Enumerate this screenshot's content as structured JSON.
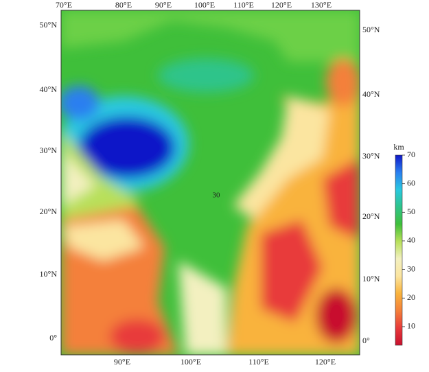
{
  "map": {
    "top_labels": [
      "70°E",
      "80°E",
      "90°E",
      "100°E",
      "110°E",
      "120°E",
      "130°E"
    ],
    "bottom_labels": [
      "90°E",
      "100°E",
      "110°E",
      "120°E"
    ],
    "left_labels": [
      "50°N",
      "40°N",
      "30°N",
      "20°N",
      "10°N",
      "0°"
    ],
    "right_labels": [
      "50°N",
      "40°N",
      "30°N",
      "20°N",
      "10°N",
      "0°"
    ],
    "contour_label": "30",
    "colorbar": {
      "title": "km",
      "clim": [
        3.5,
        70
      ],
      "ticks": [
        10,
        20,
        30,
        40,
        50,
        60,
        70
      ],
      "colormap": [
        "#c8102e",
        "#e83a3a",
        "#f4803a",
        "#f9b33c",
        "#fbe5a0",
        "#f3f0c0",
        "#b8e05a",
        "#3fbf3a",
        "#2fc48a",
        "#29c8e0",
        "#2a7ff0",
        "#1018c8"
      ]
    }
  }
}
